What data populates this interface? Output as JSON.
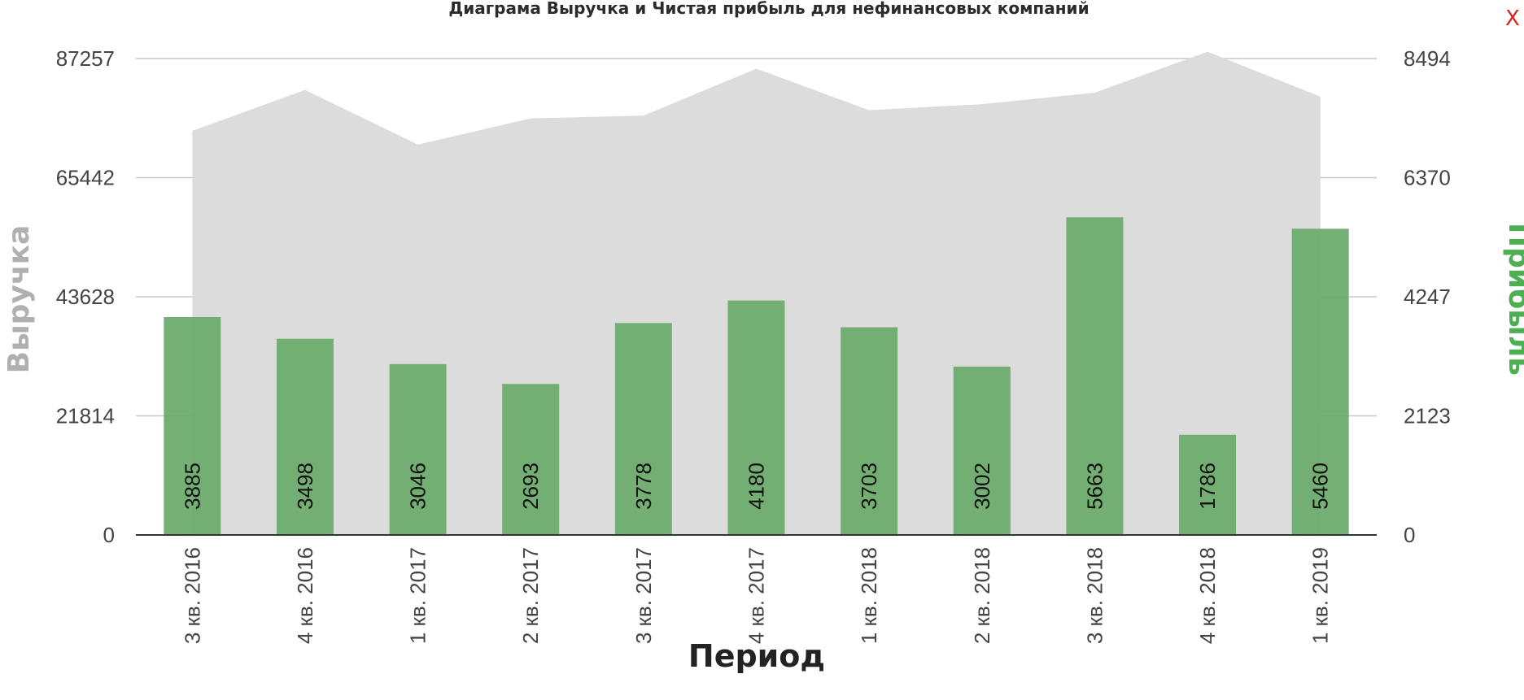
{
  "close_label": "X",
  "chart_data": {
    "type": "bar",
    "title": "Диаграма Выручка и Чистая прибыль для нефинансовых компаний",
    "xlabel": "Период",
    "ylabel_left": "Выручка",
    "ylabel_right": "Прибыль",
    "categories": [
      "3 кв. 2016",
      "4 кв. 2016",
      "1 кв. 2017",
      "2 кв. 2017",
      "3 кв. 2017",
      "4 кв. 2017",
      "1 кв. 2018",
      "2 кв. 2018",
      "3 кв. 2018",
      "4 кв. 2018",
      "1 кв. 2019"
    ],
    "series": [
      {
        "name": "Выручка",
        "type": "area",
        "axis": "left",
        "color": "#dcdcdc",
        "values": [
          74000,
          81500,
          71500,
          76300,
          76800,
          85400,
          77800,
          78900,
          81000,
          88500,
          80300
        ]
      },
      {
        "name": "Прибыль",
        "type": "bar",
        "axis": "right",
        "color": "#6aaa6a",
        "values": [
          3885,
          3498,
          3046,
          2693,
          3778,
          4180,
          3703,
          3002,
          5663,
          1786,
          5460
        ]
      }
    ],
    "y_left": {
      "ticks": [
        0,
        21814,
        43628,
        65442,
        87257
      ],
      "ylim": [
        0,
        87257
      ],
      "color": "#b0b0b0"
    },
    "y_right": {
      "ticks": [
        0,
        2123,
        4247,
        6370,
        8494
      ],
      "ylim": [
        0,
        8494
      ],
      "color": "#4caf50"
    },
    "grid": true
  }
}
